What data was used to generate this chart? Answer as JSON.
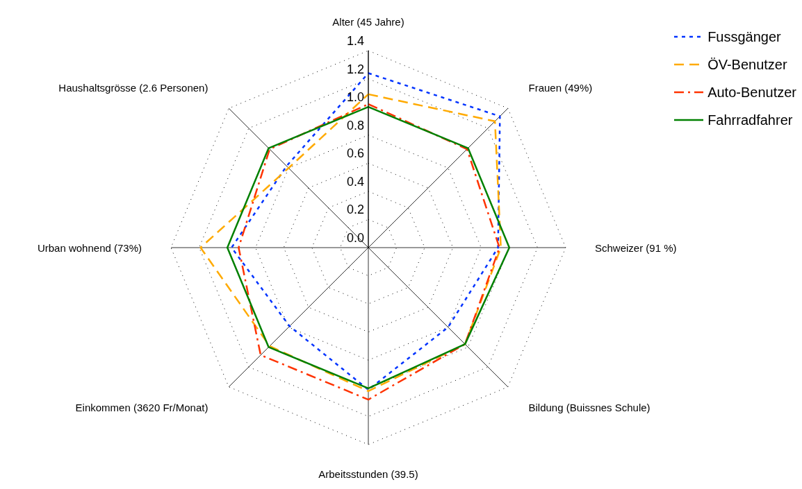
{
  "chart_data": {
    "type": "radar",
    "categories": [
      "Alter (45 Jahre)",
      "Frauen (49%)",
      "Schweizer (91 %)",
      "Bildung (Buissnes Schule)",
      "Arbeitsstunden (39.5)",
      "Einkommen (3620 Fr/Monat)",
      "Urban wohnend (73%)",
      "Haushaltsgrösse (2.6 Personen)"
    ],
    "series": [
      {
        "name": "Fussgänger",
        "color": "#0033ff",
        "line_style": "dotted",
        "values": [
          1.24,
          1.32,
          0.92,
          0.8,
          1.01,
          0.79,
          0.97,
          0.82
        ]
      },
      {
        "name": "ÖV-Benutzer",
        "color": "#ffaa00",
        "line_style": "dashed",
        "values": [
          1.09,
          1.27,
          0.94,
          0.97,
          1.02,
          0.99,
          1.19,
          0.8
        ]
      },
      {
        "name": "Auto-Benutzer",
        "color": "#ff3300",
        "line_style": "dashdot",
        "values": [
          1.02,
          0.99,
          0.93,
          0.97,
          1.08,
          1.08,
          0.92,
          0.99
        ]
      },
      {
        "name": "Fahrradfahrer",
        "color": "#008000",
        "line_style": "solid",
        "values": [
          1.0,
          1.0,
          1.0,
          0.97,
          1.0,
          1.0,
          1.0,
          1.0
        ]
      }
    ],
    "ylim": [
      0,
      1.4
    ],
    "yticks": [
      {
        "value": 0,
        "label": "0.0"
      },
      0.2,
      0.4,
      0.6,
      0.8,
      {
        "value": 1,
        "label": "1.0"
      },
      1.2,
      1.4
    ],
    "grid": true,
    "legend": "top right",
    "marker": "none"
  }
}
